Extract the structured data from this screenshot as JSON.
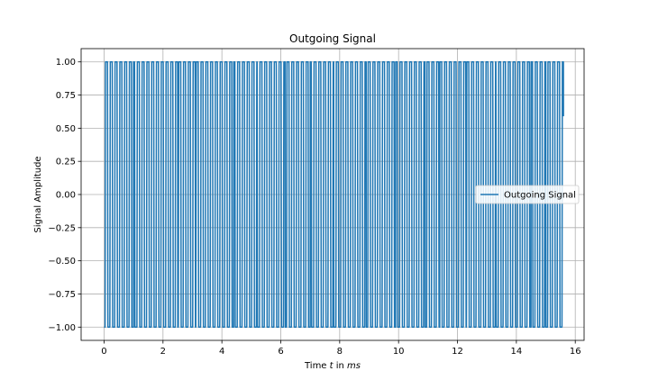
{
  "chart_data": {
    "type": "line",
    "title": "Outgoing Signal",
    "xlabel_prefix": "Time ",
    "xlabel_var": "t",
    "xlabel_mid": " in ",
    "xlabel_unit": "ms",
    "ylabel": "Signal Amplitude",
    "xlim": [
      -0.78,
      16.3
    ],
    "ylim": [
      -1.1,
      1.1
    ],
    "xticks": [
      0,
      2,
      4,
      6,
      8,
      10,
      12,
      14,
      16
    ],
    "yticks": [
      -1.0,
      -0.75,
      -0.5,
      -0.25,
      0.0,
      0.25,
      0.5,
      0.75,
      1.0
    ],
    "ytick_labels": [
      "−1.00",
      "−0.75",
      "−0.50",
      "−0.25",
      "0.00",
      "0.25",
      "0.50",
      "0.75",
      "1.00"
    ],
    "grid": true,
    "legend": {
      "placement": "center-right",
      "entries": [
        "Outgoing Signal"
      ]
    },
    "colors": {
      "series": "#1f77b4",
      "grid": "#b0b0b0"
    },
    "series": [
      {
        "name": "Outgoing Signal",
        "x_start": 0.0,
        "x_end": 15.6,
        "approx_cycles": 96,
        "phase_modulation_breakpoints_x": [
          0.0,
          1.0,
          2.5,
          3.1,
          4.4,
          5.2,
          6.15,
          7.0,
          7.8,
          8.9,
          9.9,
          10.9,
          11.4,
          12.3,
          13.3,
          14.5,
          15.0,
          15.6
        ],
        "end_value": 0.59
      }
    ]
  }
}
